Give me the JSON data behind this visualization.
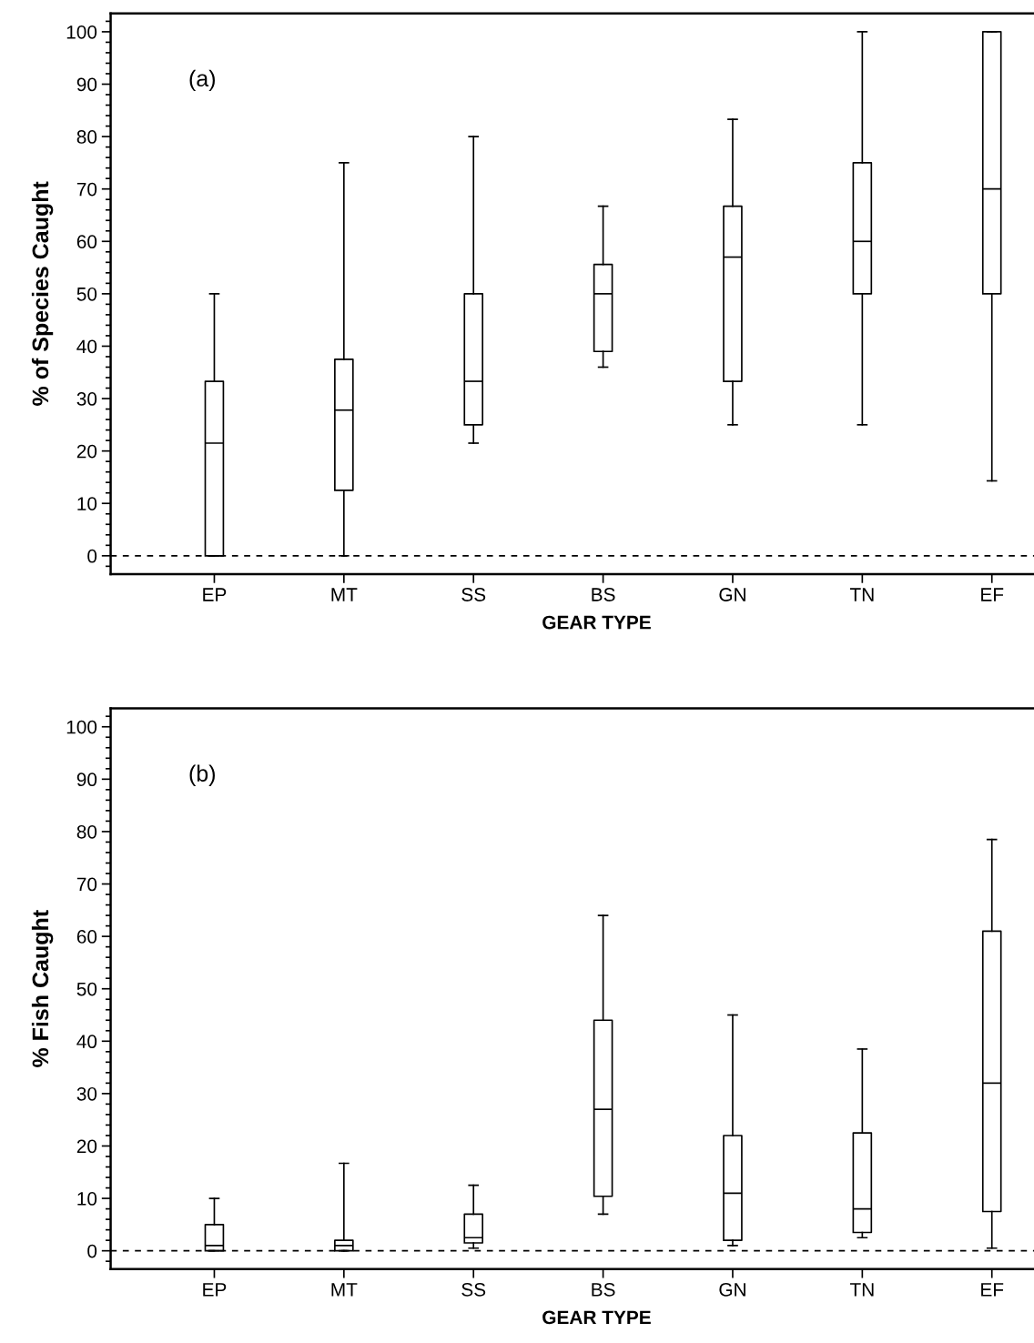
{
  "chart_data": [
    {
      "type": "box",
      "categories": [
        "EP",
        "MT",
        "SS",
        "BS",
        "GN",
        "TN",
        "EF"
      ],
      "xlabel": "GEAR TYPE",
      "ylabel": "% of Species Caught",
      "ylim": [
        -3.5,
        103.5
      ],
      "yticks": [
        0,
        10,
        20,
        30,
        40,
        50,
        60,
        70,
        80,
        90,
        100
      ],
      "annotations": [
        "(a)"
      ],
      "ref_lines": [
        {
          "axis": "y",
          "value": 0,
          "line_style": "dashed"
        }
      ],
      "boxes": [
        {
          "low": 0,
          "q1": 0,
          "median": 21.5,
          "q3": 33.3,
          "high": 50
        },
        {
          "low": 0,
          "q1": 12.5,
          "median": 27.8,
          "q3": 37.5,
          "high": 75
        },
        {
          "low": 21.5,
          "q1": 25,
          "median": 33.3,
          "q3": 50,
          "high": 80
        },
        {
          "low": 36,
          "q1": 39,
          "median": 50,
          "q3": 55.6,
          "high": 66.7
        },
        {
          "low": 25,
          "q1": 33.3,
          "median": 57,
          "q3": 66.7,
          "high": 83.3
        },
        {
          "low": 25,
          "q1": 50,
          "median": 60,
          "q3": 75,
          "high": 100
        },
        {
          "low": 14.3,
          "q1": 50,
          "median": 70,
          "q3": 100,
          "high": 100
        }
      ]
    },
    {
      "type": "box",
      "categories": [
        "EP",
        "MT",
        "SS",
        "BS",
        "GN",
        "TN",
        "EF"
      ],
      "xlabel": "GEAR TYPE",
      "ylabel": "% Fish Caught",
      "ylim": [
        -3.5,
        103.5
      ],
      "yticks": [
        0,
        10,
        20,
        30,
        40,
        50,
        60,
        70,
        80,
        90,
        100
      ],
      "annotations": [
        "(b)"
      ],
      "ref_lines": [
        {
          "axis": "y",
          "value": 0,
          "line_style": "dashed"
        }
      ],
      "boxes": [
        {
          "low": 0,
          "q1": 0,
          "median": 1,
          "q3": 5,
          "high": 10
        },
        {
          "low": 0,
          "q1": 0,
          "median": 1,
          "q3": 2,
          "high": 16.7
        },
        {
          "low": 0.5,
          "q1": 1.5,
          "median": 2.5,
          "q3": 7,
          "high": 12.5
        },
        {
          "low": 7,
          "q1": 10.4,
          "median": 27,
          "q3": 44,
          "high": 64
        },
        {
          "low": 1,
          "q1": 2,
          "median": 11,
          "q3": 22,
          "high": 45
        },
        {
          "low": 2.5,
          "q1": 3.5,
          "median": 8,
          "q3": 22.5,
          "high": 38.5
        },
        {
          "low": 0.5,
          "q1": 7.5,
          "median": 32,
          "q3": 61,
          "high": 78.5
        }
      ]
    }
  ]
}
